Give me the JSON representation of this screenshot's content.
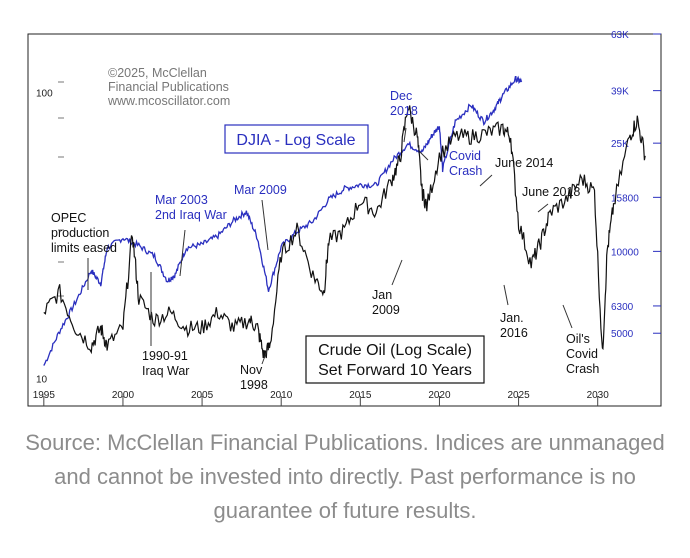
{
  "copyright": [
    "©2025, McClellan",
    "Financial Publications",
    "www.mcoscillator.com"
  ],
  "caption": "Source: McClellan Financial Publications. Indices are unmanaged and cannot be invested into directly. Past performance is no guarantee of future results.",
  "chart_data": {
    "type": "line",
    "title": "DJIA - Log Scale",
    "box_label": [
      "Crude Oil (Log Scale)",
      "Set Forward 10 Years"
    ],
    "colors": {
      "djia": "#2a2fbf",
      "oil": "#111111",
      "axis_right": "#2a2fbf"
    },
    "x_axis": {
      "ticks": [
        "1995",
        "2000",
        "2005",
        "2010",
        "2015",
        "2020",
        "2025",
        "2030"
      ],
      "range": [
        1994,
        2034
      ]
    },
    "y_left": {
      "scale": "log",
      "ticks": [
        "100",
        "10"
      ],
      "range_oil": [
        8,
        160
      ]
    },
    "y_right": {
      "scale": "log",
      "ticks": [
        "63K",
        "39K",
        "25K",
        "15800",
        "10000",
        "6300",
        "5000"
      ],
      "range": [
        2700,
        63000
      ]
    },
    "series": [
      {
        "name": "DJIA",
        "x": [
          1995,
          1996,
          1997,
          1998,
          1998.6,
          1999,
          2000,
          2001,
          2002,
          2002.8,
          2003.3,
          2004,
          2005,
          2006,
          2007,
          2007.8,
          2008.5,
          2009.2,
          2010,
          2011,
          2012,
          2013,
          2014,
          2015,
          2016,
          2017,
          2018,
          2018.9,
          2019.5,
          2020.0,
          2020.2,
          2021,
          2022,
          2022.8,
          2023.5,
          2024,
          2024.8,
          2025.2
        ],
        "y": [
          3800,
          5100,
          6500,
          8500,
          7600,
          10300,
          11200,
          10500,
          9600,
          7800,
          8200,
          10300,
          10600,
          11400,
          13000,
          14000,
          11200,
          7200,
          10400,
          11800,
          12900,
          15500,
          17000,
          17600,
          17500,
          21500,
          24800,
          23200,
          26500,
          29000,
          20000,
          30000,
          34500,
          30000,
          33500,
          37500,
          43000,
          42000
        ]
      },
      {
        "name": "Crude Oil (forward 10y)",
        "x": [
          1995,
          1996,
          1997,
          1998,
          1998.6,
          1999,
          2000,
          2000.6,
          2001,
          2002,
          2003,
          2004,
          2005,
          2006,
          2007,
          2008,
          2008.5,
          2008.9,
          2009.3,
          2010,
          2011,
          2012,
          2012.7,
          2013,
          2014,
          2015,
          2016,
          2017,
          2017.5,
          2018,
          2018.6,
          2018.9,
          2019.2,
          2020,
          2021,
          2022,
          2023,
          2024,
          2024.5,
          2025,
          2025.8,
          2026.4,
          2027,
          2028,
          2029,
          2029.8,
          2030.3,
          2030.6,
          2031,
          2032,
          2032.5,
          2033
        ],
        "y": [
          17,
          20,
          15,
          13,
          15,
          13,
          15,
          32,
          19,
          16,
          17,
          15,
          15,
          17,
          15,
          16,
          15,
          12,
          13,
          27,
          33,
          23,
          20,
          30,
          33,
          42,
          38,
          50,
          58,
          90,
          70,
          45,
          40,
          60,
          70,
          70,
          72,
          75,
          70,
          35,
          25,
          30,
          38,
          42,
          50,
          45,
          12,
          28,
          40,
          70,
          80,
          60
        ]
      }
    ],
    "annotations_blue": [
      {
        "label": "Dec 2018",
        "lines": [
          "Dec",
          "2018"
        ]
      },
      {
        "label": "Covid Crash",
        "lines": [
          "Covid",
          "Crash"
        ]
      },
      {
        "label": "Mar 2003 2nd Iraq War",
        "lines": [
          "Mar 2003",
          "2nd Iraq War"
        ]
      },
      {
        "label": "Mar 2009",
        "lines": [
          "Mar 2009"
        ]
      }
    ],
    "annotations_black": [
      {
        "label": "OPEC production limits eased",
        "lines": [
          "OPEC",
          "production",
          "limits eased"
        ]
      },
      {
        "label": "1990-91 Iraq War",
        "lines": [
          "1990-91",
          "Iraq War"
        ]
      },
      {
        "label": "Nov 1998",
        "lines": [
          "Nov",
          "1998"
        ]
      },
      {
        "label": "Jan 2009",
        "lines": [
          "Jan",
          "2009"
        ]
      },
      {
        "label": "June 2014",
        "lines": [
          "June 2014"
        ]
      },
      {
        "label": "Jan. 2016",
        "lines": [
          "Jan.",
          "2016"
        ]
      },
      {
        "label": "June 2018",
        "lines": [
          "June 2018"
        ]
      },
      {
        "label": "Oil's Covid Crash",
        "lines": [
          "Oil's",
          "Covid",
          "Crash"
        ]
      }
    ]
  }
}
